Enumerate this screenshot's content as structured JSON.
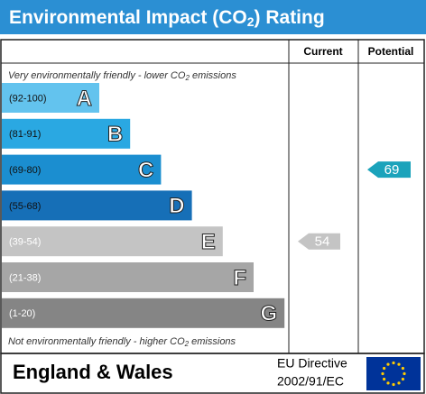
{
  "header": {
    "title": [
      "Environmental Impact (CO",
      "2",
      ") Rating"
    ]
  },
  "columns": {
    "current": "Current",
    "potential": "Potential"
  },
  "top_note": [
    "Very environmentally friendly - lower CO",
    "2",
    " emissions"
  ],
  "bottom_note": [
    "Not environmentally friendly - higher CO",
    "2",
    " emissions"
  ],
  "bands": [
    {
      "range": "(92-100)",
      "letter": "A",
      "color": "#63c3ee"
    },
    {
      "range": "(81-91)",
      "letter": "B",
      "color": "#2aa8e2"
    },
    {
      "range": "(69-80)",
      "letter": "C",
      "color": "#1b8ed0"
    },
    {
      "range": "(55-68)",
      "letter": "D",
      "color": "#166fb7"
    },
    {
      "range": "(39-54)",
      "letter": "E",
      "color": "#c4c4c4"
    },
    {
      "range": "(21-38)",
      "letter": "F",
      "color": "#a6a6a6"
    },
    {
      "range": "(1-20)",
      "letter": "G",
      "color": "#858585"
    }
  ],
  "ratings": {
    "current": {
      "value": 54,
      "color": "#c4c4c4"
    },
    "potential": {
      "value": 69,
      "color": "#1ba3bb"
    }
  },
  "footer": {
    "region": "England & Wales",
    "directive": [
      "EU Directive",
      "2002/91/EC"
    ]
  }
}
